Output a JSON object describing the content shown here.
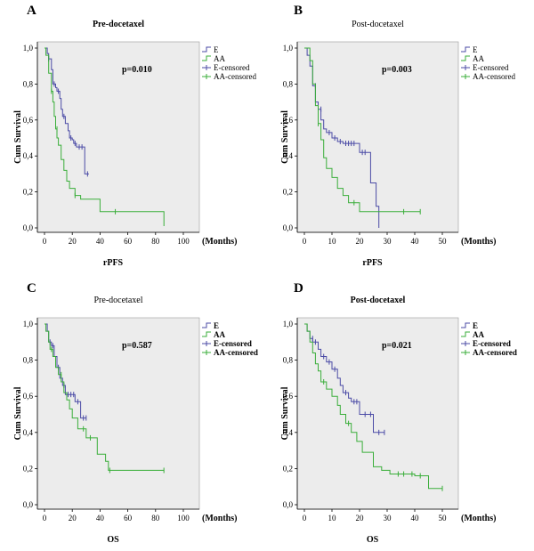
{
  "colors": {
    "E": "#4b4ba6",
    "AA": "#3aae3a",
    "plot_bg": "#ececec",
    "axis": "#000000"
  },
  "chart_data": [
    {
      "type": "line",
      "letter": "A",
      "title": "Pre-docetaxel",
      "title_bold": true,
      "xlabel": "rPFS",
      "ylabel": "Cum Survival",
      "x_unit": "(Months)",
      "xlim": [
        0,
        100
      ],
      "ylim": [
        0,
        1
      ],
      "xticks": [
        0,
        20,
        40,
        60,
        80,
        100
      ],
      "xtick_labels": [
        "0",
        "20",
        "40",
        "60",
        "80",
        "100"
      ],
      "yticks": [
        0,
        0.2,
        0.4,
        0.6,
        0.8,
        1.0
      ],
      "ytick_labels": [
        "0,0",
        "0,2",
        "0,4",
        "0,6",
        "0,8",
        "1,0"
      ],
      "p_value": "p=0.010",
      "legend": [
        "E",
        "AA",
        "E-censored",
        "AA-censored"
      ],
      "legend_bold": false,
      "series": [
        {
          "name": "E",
          "steps": [
            [
              0,
              1.0
            ],
            [
              2,
              0.97
            ],
            [
              3,
              0.94
            ],
            [
              5,
              0.88
            ],
            [
              6,
              0.8
            ],
            [
              8,
              0.78
            ],
            [
              9,
              0.76
            ],
            [
              11,
              0.72
            ],
            [
              12,
              0.66
            ],
            [
              13,
              0.62
            ],
            [
              15,
              0.58
            ],
            [
              17,
              0.54
            ],
            [
              18,
              0.5
            ],
            [
              20,
              0.49
            ],
            [
              21,
              0.47
            ],
            [
              23,
              0.45
            ],
            [
              29,
              0.3
            ],
            [
              32,
              0.3
            ]
          ],
          "censored": [
            [
              3,
              0.94
            ],
            [
              7,
              0.8
            ],
            [
              10,
              0.76
            ],
            [
              14,
              0.62
            ],
            [
              19,
              0.5
            ],
            [
              22,
              0.47
            ],
            [
              25,
              0.45
            ],
            [
              27,
              0.45
            ],
            [
              31,
              0.3
            ]
          ]
        },
        {
          "name": "AA",
          "steps": [
            [
              0,
              1.0
            ],
            [
              1,
              0.96
            ],
            [
              3,
              0.86
            ],
            [
              5,
              0.76
            ],
            [
              6,
              0.7
            ],
            [
              7,
              0.62
            ],
            [
              8,
              0.55
            ],
            [
              9,
              0.5
            ],
            [
              10,
              0.46
            ],
            [
              12,
              0.38
            ],
            [
              14,
              0.32
            ],
            [
              16,
              0.26
            ],
            [
              18,
              0.22
            ],
            [
              22,
              0.18
            ],
            [
              26,
              0.16
            ],
            [
              33,
              0.16
            ],
            [
              40,
              0.09
            ],
            [
              86,
              0.09
            ],
            [
              86,
              0.01
            ]
          ],
          "censored": [
            [
              5,
              0.76
            ],
            [
              9,
              0.55
            ],
            [
              22,
              0.18
            ],
            [
              51,
              0.09
            ]
          ]
        }
      ]
    },
    {
      "type": "line",
      "letter": "B",
      "title": "Post-docetaxel",
      "title_bold": false,
      "xlabel": "rPFS",
      "ylabel": "Cum Survival",
      "x_unit": "(Months)",
      "xlim": [
        0,
        50
      ],
      "ylim": [
        0,
        1
      ],
      "xticks": [
        0,
        10,
        20,
        30,
        40,
        50
      ],
      "xtick_labels": [
        "0",
        "10",
        "20",
        "30",
        "40",
        "50"
      ],
      "yticks": [
        0,
        0.2,
        0.4,
        0.6,
        0.8,
        1.0
      ],
      "ytick_labels": [
        "0,0",
        "0,2",
        "0,4",
        "0,6",
        "0,8",
        "1,0"
      ],
      "p_value": "p=0.003",
      "legend": [
        "E",
        "AA",
        "E-censored",
        "AA-censored"
      ],
      "legend_bold": false,
      "series": [
        {
          "name": "E",
          "steps": [
            [
              0,
              1.0
            ],
            [
              1,
              0.96
            ],
            [
              2,
              0.9
            ],
            [
              3,
              0.79
            ],
            [
              4,
              0.7
            ],
            [
              5,
              0.66
            ],
            [
              6,
              0.6
            ],
            [
              7,
              0.55
            ],
            [
              8,
              0.53
            ],
            [
              10,
              0.5
            ],
            [
              12,
              0.48
            ],
            [
              14,
              0.47
            ],
            [
              19,
              0.47
            ],
            [
              20,
              0.42
            ],
            [
              23,
              0.42
            ],
            [
              24,
              0.25
            ],
            [
              26,
              0.12
            ],
            [
              27,
              0.0
            ]
          ],
          "censored": [
            [
              4,
              0.79
            ],
            [
              6,
              0.66
            ],
            [
              9,
              0.53
            ],
            [
              11,
              0.5
            ],
            [
              13,
              0.48
            ],
            [
              15,
              0.47
            ],
            [
              16,
              0.47
            ],
            [
              17,
              0.47
            ],
            [
              18,
              0.47
            ],
            [
              21,
              0.42
            ],
            [
              22,
              0.42
            ]
          ]
        },
        {
          "name": "AA",
          "steps": [
            [
              0,
              1.0
            ],
            [
              2,
              0.93
            ],
            [
              3,
              0.8
            ],
            [
              4,
              0.68
            ],
            [
              5,
              0.58
            ],
            [
              6,
              0.49
            ],
            [
              7,
              0.39
            ],
            [
              8,
              0.33
            ],
            [
              10,
              0.28
            ],
            [
              12,
              0.22
            ],
            [
              14,
              0.18
            ],
            [
              16,
              0.14
            ],
            [
              20,
              0.09
            ],
            [
              42,
              0.09
            ]
          ],
          "censored": [
            [
              5,
              0.58
            ],
            [
              18,
              0.14
            ],
            [
              36,
              0.09
            ],
            [
              42,
              0.09
            ]
          ]
        }
      ]
    },
    {
      "type": "line",
      "letter": "C",
      "title": "Pre-docetaxel",
      "title_bold": false,
      "xlabel": "OS",
      "ylabel": "Cum Survival",
      "x_unit": "(Months)",
      "xlim": [
        0,
        100
      ],
      "ylim": [
        0,
        1
      ],
      "xticks": [
        0,
        20,
        40,
        60,
        80,
        100
      ],
      "xtick_labels": [
        "0",
        "20",
        "40",
        "60",
        "80",
        "100"
      ],
      "yticks": [
        0,
        0.2,
        0.4,
        0.6,
        0.8,
        1.0
      ],
      "ytick_labels": [
        "0,0",
        "0,2",
        "0,4",
        "0,6",
        "0,8",
        "1,0"
      ],
      "p_value": "p=0.587",
      "legend": [
        "E",
        "AA",
        "E-censored",
        "AA-censored"
      ],
      "legend_bold": true,
      "series": [
        {
          "name": "E",
          "steps": [
            [
              0,
              1.0
            ],
            [
              2,
              0.96
            ],
            [
              3,
              0.9
            ],
            [
              5,
              0.88
            ],
            [
              7,
              0.82
            ],
            [
              9,
              0.76
            ],
            [
              11,
              0.7
            ],
            [
              13,
              0.66
            ],
            [
              15,
              0.61
            ],
            [
              22,
              0.57
            ],
            [
              26,
              0.48
            ],
            [
              30,
              0.48
            ]
          ],
          "censored": [
            [
              4,
              0.9
            ],
            [
              6,
              0.88
            ],
            [
              10,
              0.76
            ],
            [
              14,
              0.66
            ],
            [
              17,
              0.61
            ],
            [
              19,
              0.61
            ],
            [
              21,
              0.61
            ],
            [
              24,
              0.57
            ],
            [
              28,
              0.48
            ],
            [
              30,
              0.48
            ]
          ]
        },
        {
          "name": "AA",
          "steps": [
            [
              0,
              1.0
            ],
            [
              1,
              0.96
            ],
            [
              3,
              0.9
            ],
            [
              4,
              0.86
            ],
            [
              6,
              0.82
            ],
            [
              8,
              0.76
            ],
            [
              10,
              0.72
            ],
            [
              12,
              0.68
            ],
            [
              14,
              0.62
            ],
            [
              16,
              0.58
            ],
            [
              18,
              0.53
            ],
            [
              20,
              0.48
            ],
            [
              24,
              0.42
            ],
            [
              30,
              0.37
            ],
            [
              38,
              0.28
            ],
            [
              44,
              0.24
            ],
            [
              46,
              0.19
            ],
            [
              86,
              0.19
            ]
          ],
          "censored": [
            [
              5,
              0.86
            ],
            [
              12,
              0.72
            ],
            [
              28,
              0.42
            ],
            [
              33,
              0.37
            ],
            [
              47,
              0.19
            ],
            [
              86,
              0.19
            ]
          ]
        }
      ]
    },
    {
      "type": "line",
      "letter": "D",
      "title": "Post-docetaxel",
      "title_bold": true,
      "xlabel": "OS",
      "ylabel": "Cum Survival",
      "x_unit": "(Months)",
      "xlim": [
        0,
        50
      ],
      "ylim": [
        0,
        1
      ],
      "xticks": [
        0,
        10,
        20,
        30,
        40,
        50
      ],
      "xtick_labels": [
        "0",
        "10",
        "20",
        "30",
        "40",
        "50"
      ],
      "yticks": [
        0,
        0.2,
        0.4,
        0.6,
        0.8,
        1.0
      ],
      "ytick_labels": [
        "0,0",
        "0,2",
        "0,4",
        "0,6",
        "0,8",
        "1,0"
      ],
      "p_value": "p=0.021",
      "legend": [
        "E",
        "AA",
        "E-censored",
        "AA-censored"
      ],
      "legend_bold": true,
      "series": [
        {
          "name": "E",
          "steps": [
            [
              0,
              1.0
            ],
            [
              1,
              0.96
            ],
            [
              2,
              0.92
            ],
            [
              3,
              0.9
            ],
            [
              5,
              0.86
            ],
            [
              6,
              0.82
            ],
            [
              8,
              0.79
            ],
            [
              10,
              0.75
            ],
            [
              12,
              0.7
            ],
            [
              13,
              0.66
            ],
            [
              14,
              0.62
            ],
            [
              16,
              0.59
            ],
            [
              17,
              0.57
            ],
            [
              20,
              0.5
            ],
            [
              25,
              0.4
            ],
            [
              29,
              0.4
            ]
          ],
          "censored": [
            [
              3,
              0.92
            ],
            [
              4,
              0.9
            ],
            [
              7,
              0.82
            ],
            [
              9,
              0.79
            ],
            [
              11,
              0.75
            ],
            [
              15,
              0.62
            ],
            [
              18,
              0.57
            ],
            [
              19,
              0.57
            ],
            [
              22,
              0.5
            ],
            [
              24,
              0.5
            ],
            [
              27,
              0.4
            ],
            [
              29,
              0.4
            ]
          ]
        },
        {
          "name": "AA",
          "steps": [
            [
              0,
              1.0
            ],
            [
              1,
              0.96
            ],
            [
              2,
              0.9
            ],
            [
              3,
              0.84
            ],
            [
              4,
              0.78
            ],
            [
              5,
              0.74
            ],
            [
              6,
              0.68
            ],
            [
              8,
              0.64
            ],
            [
              10,
              0.6
            ],
            [
              12,
              0.55
            ],
            [
              13,
              0.5
            ],
            [
              15,
              0.45
            ],
            [
              17,
              0.4
            ],
            [
              19,
              0.35
            ],
            [
              21,
              0.29
            ],
            [
              25,
              0.21
            ],
            [
              28,
              0.19
            ],
            [
              31,
              0.17
            ],
            [
              40,
              0.16
            ],
            [
              45,
              0.09
            ],
            [
              50,
              0.09
            ]
          ],
          "censored": [
            [
              7,
              0.68
            ],
            [
              16,
              0.45
            ],
            [
              34,
              0.17
            ],
            [
              36,
              0.17
            ],
            [
              39,
              0.17
            ],
            [
              42,
              0.16
            ],
            [
              50,
              0.09
            ]
          ]
        }
      ]
    }
  ]
}
